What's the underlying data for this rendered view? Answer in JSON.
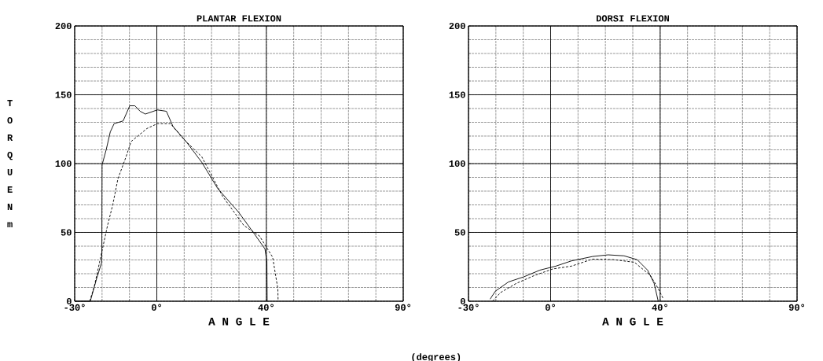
{
  "chart_data": [
    {
      "type": "line",
      "title": "PLANTAR FLEXION",
      "xlabel": "A N G L E",
      "ylabel": "T O R Q U E N m",
      "annotations": [
        "(degrees)"
      ],
      "xlim": [
        -30,
        90
      ],
      "xticks": [
        {
          "value": -30,
          "label": "-30°"
        },
        {
          "value": 0,
          "label": "0°"
        },
        {
          "value": 40,
          "label": "40°"
        },
        {
          "value": 90,
          "label": "90°"
        }
      ],
      "ylim": [
        0,
        200
      ],
      "yticks": [
        0,
        50,
        100,
        150,
        200
      ],
      "grid": true,
      "marker": "none",
      "series": [
        {
          "color": "#000000",
          "line_style": "solid",
          "x": [
            -30,
            -24.3,
            -21.9,
            -20.1,
            -20,
            -18.5,
            -17,
            -15.6,
            -12.3,
            -9.9,
            -8,
            -6.1,
            -4.2,
            0.2,
            3.5,
            5.9,
            10.7,
            16.4,
            22.2,
            29.9,
            35.6,
            39.5,
            40.2,
            40.3
          ],
          "values": [
            0,
            0,
            17,
            28.5,
            99,
            110,
            123,
            129,
            131,
            142,
            142,
            138,
            136,
            139,
            138,
            127,
            116,
            101,
            82,
            64.6,
            49,
            38,
            28.5,
            0
          ]
        },
        {
          "color": "#000000",
          "line_style": "dashed",
          "x": [
            -24.5,
            -22.8,
            -20.9,
            -18,
            -16.1,
            -14.2,
            -11.3,
            -9.4,
            -3.6,
            0.2,
            5,
            9.7,
            16.4,
            24.1,
            31.8,
            37.5,
            42.3,
            44.2,
            44.3
          ],
          "values": [
            0,
            11,
            28.5,
            55,
            70,
            89,
            104.6,
            116,
            125.5,
            129,
            129,
            118,
            105,
            76,
            55,
            47.4,
            32,
            9,
            0
          ]
        }
      ]
    },
    {
      "type": "line",
      "title": "DORSI FLEXION",
      "xlabel": "A N G L E",
      "xlim": [
        -30,
        90
      ],
      "xticks": [
        {
          "value": -30,
          "label": "-30°"
        },
        {
          "value": 0,
          "label": "0°"
        },
        {
          "value": 40,
          "label": "40°"
        },
        {
          "value": 90,
          "label": "90°"
        }
      ],
      "ylim": [
        0,
        200
      ],
      "yticks": [
        0,
        50,
        100,
        150,
        200
      ],
      "grid": true,
      "marker": "none",
      "series": [
        {
          "color": "#000000",
          "line_style": "solid",
          "x": [
            -22.1,
            -20.2,
            -15.4,
            -9.7,
            -3.9,
            1.9,
            7.6,
            15.3,
            21,
            26.8,
            31.6,
            35.4,
            37.8,
            39.3
          ],
          "values": [
            1.5,
            7.3,
            14,
            17.8,
            22.6,
            25.5,
            29.3,
            32.5,
            33.7,
            33,
            30.2,
            22.6,
            13,
            0
          ]
        },
        {
          "color": "#000000",
          "line_style": "dashed",
          "x": [
            -21.2,
            -18.3,
            -12.5,
            -5.8,
            0.9,
            7.6,
            15.3,
            23,
            30.6,
            36.4,
            39.3,
            41.2
          ],
          "values": [
            0,
            6.3,
            13,
            18.8,
            23.5,
            25.5,
            30.6,
            30.2,
            28.3,
            18.8,
            9.2,
            1.5
          ]
        }
      ]
    }
  ]
}
